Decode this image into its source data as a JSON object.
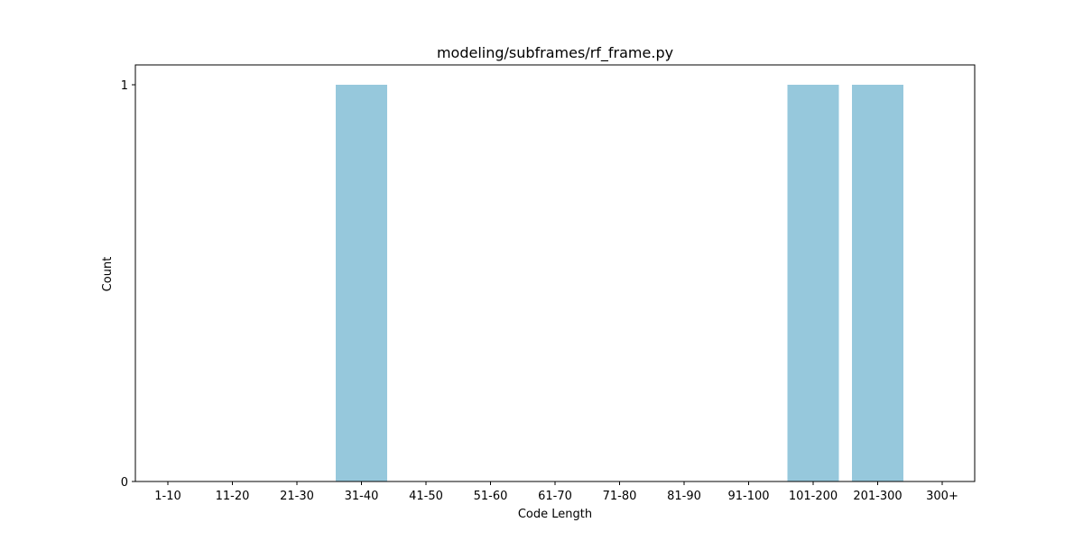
{
  "chart_data": {
    "type": "bar",
    "title": "modeling/subframes/rf_frame.py",
    "xlabel": "Code Length",
    "ylabel": "Count",
    "categories": [
      "1-10",
      "11-20",
      "21-30",
      "31-40",
      "41-50",
      "51-60",
      "61-70",
      "71-80",
      "81-90",
      "91-100",
      "101-200",
      "201-300",
      "300+"
    ],
    "values": [
      0,
      0,
      0,
      1,
      0,
      0,
      0,
      0,
      0,
      0,
      1,
      1,
      0
    ],
    "ylim": [
      0,
      1
    ],
    "yticks": [
      0,
      1
    ],
    "grid": false,
    "colors": {
      "bar": "#96c8dc",
      "axis": "#000000",
      "background": "#ffffff"
    }
  }
}
